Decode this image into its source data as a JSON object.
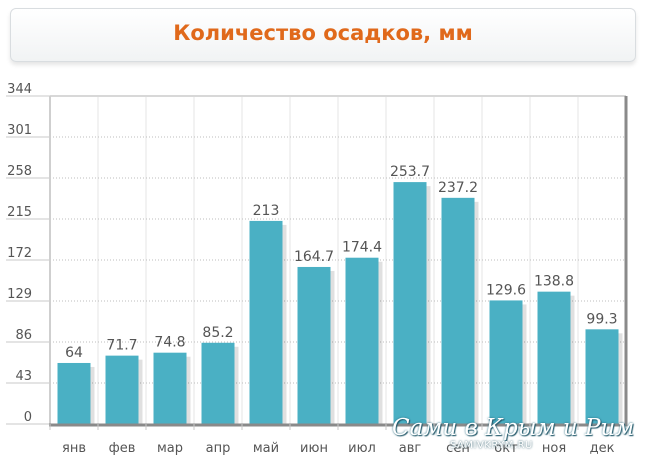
{
  "chart_data": {
    "type": "bar",
    "title": "Количество осадков, мм",
    "categories": [
      "янв",
      "фев",
      "мар",
      "апр",
      "май",
      "июн",
      "июл",
      "авг",
      "сен",
      "окт",
      "ноя",
      "дек"
    ],
    "values": [
      64,
      71.7,
      74.8,
      85.2,
      213,
      164.7,
      174.4,
      253.7,
      237.2,
      129.6,
      138.8,
      99.3
    ],
    "value_labels": [
      "64",
      "71.7",
      "74.8",
      "85.2",
      "213",
      "164.7",
      "174.4",
      "253.7",
      "237.2",
      "129.6",
      "138.8",
      "99.3"
    ],
    "yticks": [
      "0",
      "43",
      "86",
      "129",
      "172",
      "215",
      "258",
      "301",
      "344"
    ],
    "ylim": [
      0,
      344
    ],
    "xlabel": "",
    "ylabel": "",
    "grid": true,
    "bar_color": "#4ab0c4",
    "label_color": "#555555"
  },
  "watermark": {
    "main": "Сами в Крым и Рим",
    "sub": "SAMIVKRYM.RU"
  }
}
